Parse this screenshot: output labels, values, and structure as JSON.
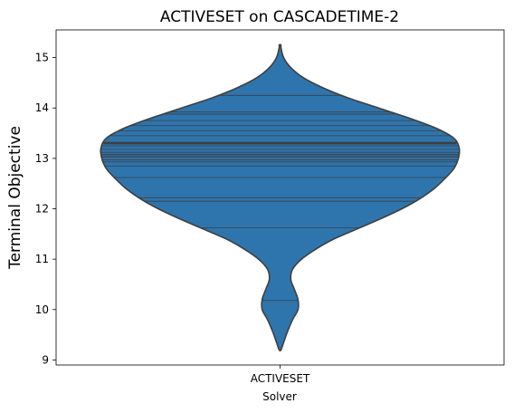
{
  "chart_data": {
    "type": "violin",
    "title": "ACTIVESET on CASCADETIME-2",
    "xlabel": "Solver",
    "ylabel": "Terminal Objective",
    "categories": [
      "ACTIVESET"
    ],
    "ylim": [
      8.9,
      15.55
    ],
    "yticks": [
      9,
      10,
      11,
      12,
      13,
      14,
      15
    ],
    "grid": false,
    "fill_color": "#2e75ae",
    "edge_color": "#3f3f3f",
    "violins": [
      {
        "category": "ACTIVESET",
        "min": 9.2,
        "max": 15.25,
        "median": 13.3,
        "density_profile": [
          [
            9.2,
            0.005
          ],
          [
            9.35,
            0.02
          ],
          [
            9.55,
            0.04
          ],
          [
            9.8,
            0.07
          ],
          [
            10.0,
            0.1
          ],
          [
            10.2,
            0.1
          ],
          [
            10.4,
            0.08
          ],
          [
            10.6,
            0.06
          ],
          [
            10.8,
            0.07
          ],
          [
            11.0,
            0.12
          ],
          [
            11.2,
            0.2
          ],
          [
            11.4,
            0.3
          ],
          [
            11.6,
            0.43
          ],
          [
            11.8,
            0.56
          ],
          [
            12.0,
            0.68
          ],
          [
            12.2,
            0.78
          ],
          [
            12.4,
            0.86
          ],
          [
            12.6,
            0.92
          ],
          [
            12.8,
            0.97
          ],
          [
            13.0,
            0.995
          ],
          [
            13.2,
            1.0
          ],
          [
            13.4,
            0.97
          ],
          [
            13.6,
            0.87
          ],
          [
            13.8,
            0.72
          ],
          [
            14.0,
            0.55
          ],
          [
            14.2,
            0.38
          ],
          [
            14.4,
            0.24
          ],
          [
            14.6,
            0.13
          ],
          [
            14.8,
            0.06
          ],
          [
            15.0,
            0.02
          ],
          [
            15.2,
            0.005
          ],
          [
            15.25,
            0.005
          ]
        ],
        "observations": [
          10.18,
          11.62,
          12.15,
          12.22,
          12.62,
          12.85,
          12.93,
          12.97,
          13.02,
          13.05,
          13.08,
          13.12,
          13.18,
          13.25,
          13.32,
          13.45,
          13.55,
          13.65,
          13.75,
          13.88,
          13.92,
          14.25
        ]
      }
    ]
  }
}
